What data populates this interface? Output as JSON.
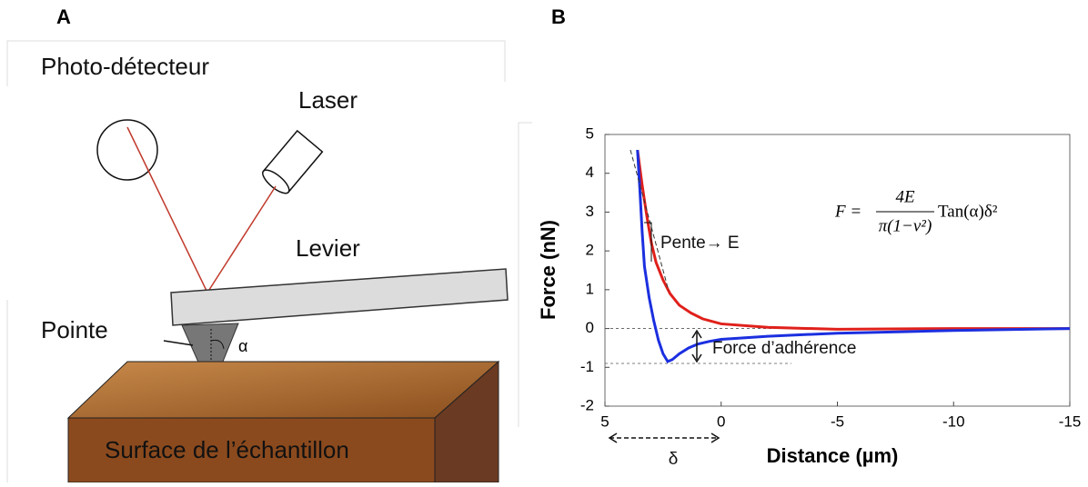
{
  "diagram": {
    "panel_label": "A",
    "photodetector": "Photo-détecteur",
    "laser": "Laser",
    "lever": "Levier",
    "tip": "Pointe",
    "angle": "α",
    "surface": "Surface de l’échantillon"
  },
  "chart_data": {
    "type": "line",
    "panel_label": "B",
    "xlabel": "Distance (µm)",
    "ylabel": "Force (nN)",
    "xlim": [
      5,
      -15
    ],
    "xticks": [
      5,
      0,
      -5,
      -10,
      -15
    ],
    "ylim": [
      -2,
      5
    ],
    "yticks": [
      -2,
      -1,
      0,
      1,
      2,
      3,
      4,
      5
    ],
    "hlines": [
      0,
      -0.9
    ],
    "series": [
      {
        "color": "#e0201b",
        "x": [
          3.6,
          3.4,
          3.2,
          3.0,
          2.8,
          2.5,
          2.2,
          1.8,
          1.3,
          0.8,
          0,
          -2,
          -5,
          -10,
          -15
        ],
        "values": [
          4.6,
          3.7,
          2.9,
          2.2,
          1.7,
          1.25,
          0.9,
          0.6,
          0.4,
          0.25,
          0.12,
          0.03,
          -0.02,
          0,
          0
        ]
      },
      {
        "color": "#1b2fe0",
        "x": [
          3.6,
          3.5,
          3.4,
          3.3,
          3.1,
          2.9,
          2.7,
          2.5,
          2.3,
          2.1,
          1.8,
          1.4,
          1.0,
          0.5,
          0,
          -2,
          -5,
          -8,
          -10,
          -15
        ],
        "values": [
          4.6,
          3.6,
          2.5,
          1.6,
          0.8,
          0.2,
          -0.3,
          -0.65,
          -0.85,
          -0.8,
          -0.65,
          -0.5,
          -0.4,
          -0.33,
          -0.28,
          -0.2,
          -0.12,
          -0.08,
          -0.05,
          0
        ]
      }
    ],
    "annotations": {
      "slope": "Pente→ E",
      "adhesion": "Force d’adhérence",
      "delta": "δ",
      "formula": {
        "lhs": "F =",
        "numerator": "4E",
        "denominator": "π(1−ν²)",
        "rhs": "Tan(α)δ²"
      }
    }
  }
}
